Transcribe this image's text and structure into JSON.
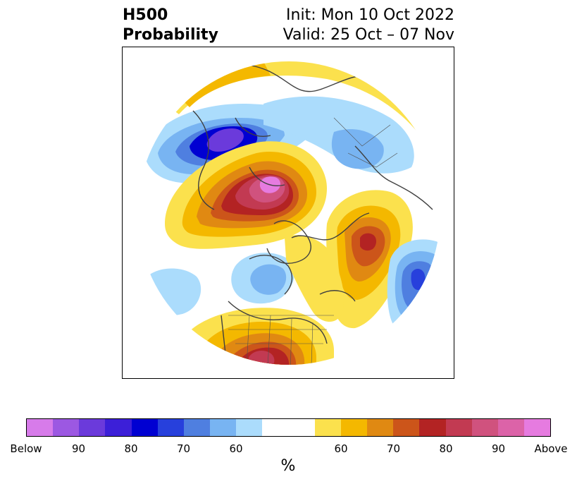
{
  "title": {
    "left_line1": "H500",
    "left_line2": "Probability",
    "right_line1": "Init: Mon 10 Oct 2022",
    "right_line2": "Valid: 25 Oct – 07 Nov"
  },
  "map": {
    "projection": "north-polar stereographic (circular hemispheric view)",
    "below_normal_color": "#4f7fe0",
    "above_normal_color": "#c33a2a"
  },
  "legend": {
    "units": "%",
    "colors": [
      "#d77bea",
      "#9c58e2",
      "#6b3adb",
      "#3c1fd8",
      "#0000d2",
      "#2740dc",
      "#4f7fe0",
      "#78b4f2",
      "#abdcfc",
      "#ffffff",
      "#ffffff",
      "#fbe14d",
      "#f4b800",
      "#e08912",
      "#cc551a",
      "#b32323",
      "#c23a52",
      "#d0527e",
      "#dc63a8",
      "#e67be0"
    ],
    "tick_labels": [
      "Below",
      "90",
      "80",
      "70",
      "60",
      "60",
      "70",
      "80",
      "90",
      "Above"
    ]
  }
}
